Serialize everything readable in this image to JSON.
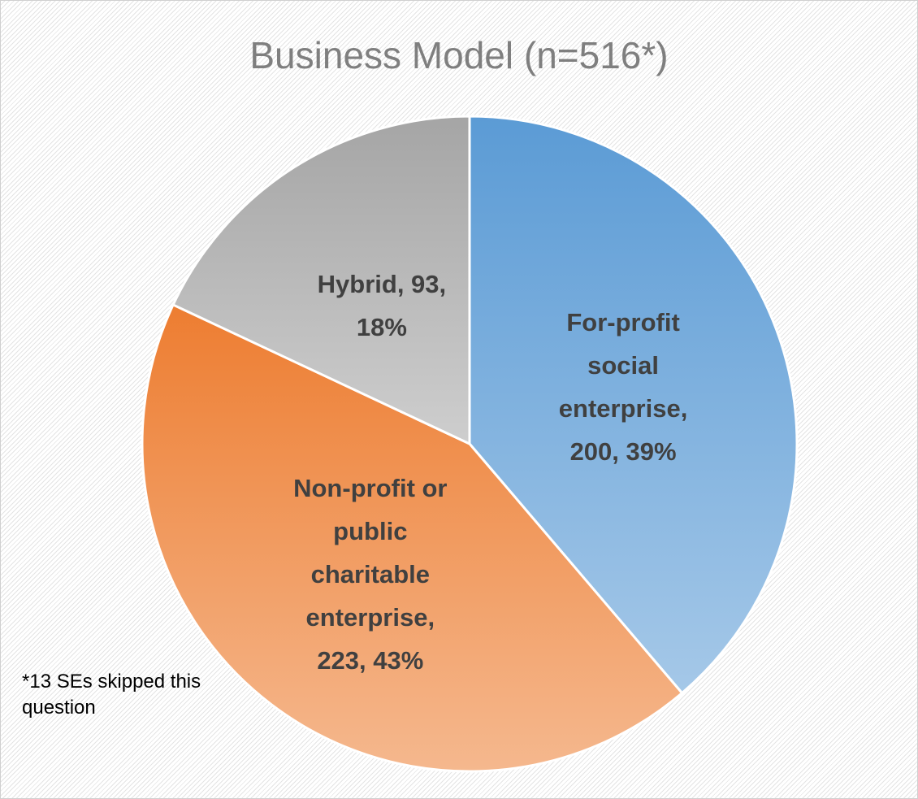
{
  "chart_data": {
    "type": "pie",
    "title": "Business Model (n=516*)",
    "values": [
      200,
      223,
      93
    ],
    "value_labels": [
      "For-profit social enterprise, 200, 39%",
      "Non-profit or public charitable enterprise, 223, 43%",
      "Hybrid, 93, 18%"
    ],
    "colors": [
      "#5b9bd5",
      "#ed7d31",
      "#a5a5a5"
    ],
    "note": "*13 SEs skipped this question"
  }
}
